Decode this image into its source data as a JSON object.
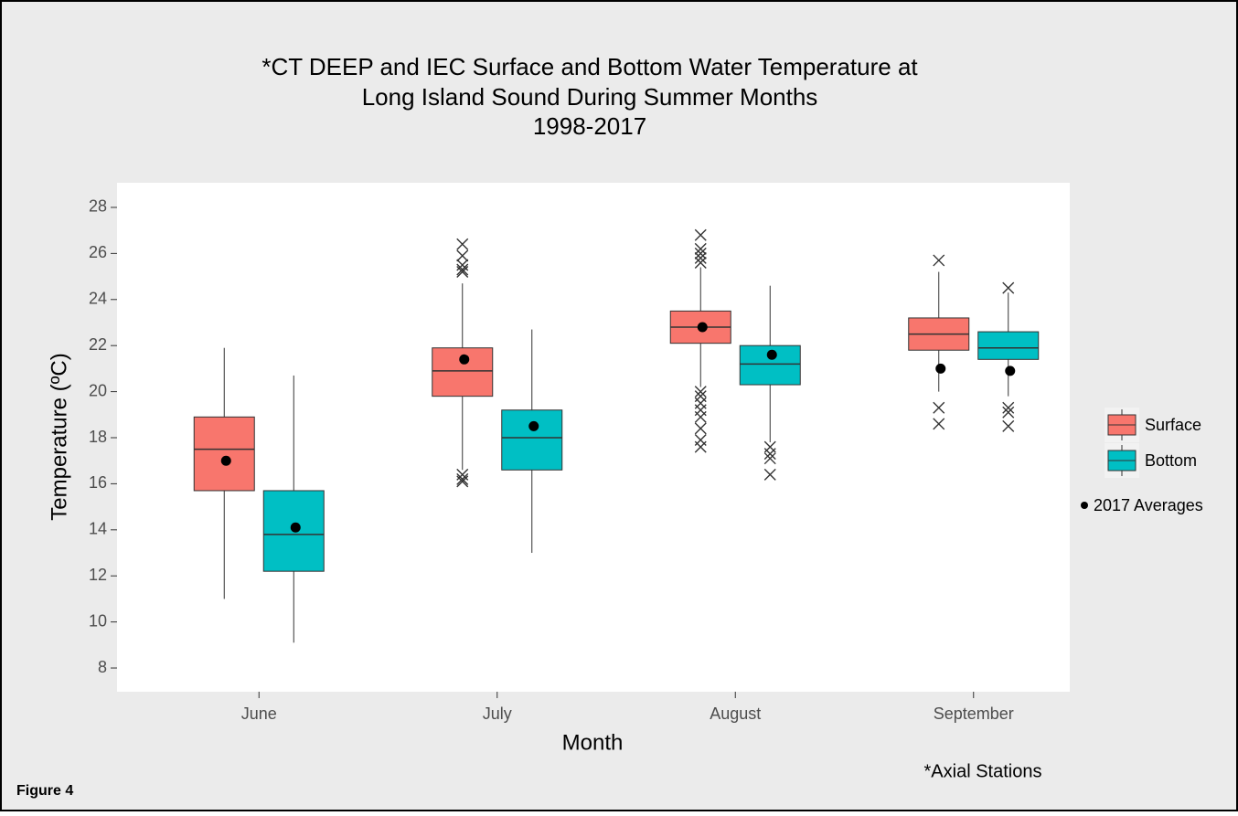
{
  "chart_data": {
    "type": "box",
    "title": [
      "*CT DEEP and IEC Surface and Bottom Water Temperature at",
      "Long Island Sound During Summer Months",
      "1998-2017"
    ],
    "x_label": "Month",
    "y_label": "Temperature (ºC)",
    "categories": [
      "June",
      "July",
      "August",
      "September"
    ],
    "ylim": [
      6.97,
      29.07
    ],
    "yticks": [
      8,
      10,
      12,
      14,
      16,
      18,
      20,
      22,
      24,
      26,
      28
    ],
    "grid": false,
    "legend_position": "right",
    "averages_label": "2017 Averages",
    "series": [
      {
        "name": "Surface",
        "color": "#f8766d",
        "min": [
          11.0,
          16.6,
          20.2,
          20.0
        ],
        "q1": [
          15.7,
          19.8,
          22.1,
          21.8
        ],
        "median": [
          17.5,
          20.9,
          22.8,
          22.5
        ],
        "q3": [
          18.9,
          21.9,
          23.5,
          23.2
        ],
        "max": [
          21.9,
          24.7,
          25.4,
          25.2
        ],
        "outliers": [
          [],
          [
            16.1,
            16.2,
            16.4,
            25.2,
            25.3,
            25.5,
            25.9,
            26.4
          ],
          [
            17.6,
            17.9,
            18.4,
            18.9,
            19.2,
            19.5,
            19.8,
            20.0,
            25.6,
            25.8,
            26.0,
            26.2,
            26.8
          ],
          [
            18.6,
            19.3,
            25.7
          ]
        ],
        "averages": [
          17.0,
          21.4,
          22.8,
          21.0
        ]
      },
      {
        "name": "Bottom",
        "color": "#00bfc4",
        "min": [
          9.1,
          13.0,
          17.8,
          19.8
        ],
        "q1": [
          12.2,
          16.6,
          20.3,
          21.4
        ],
        "median": [
          13.8,
          18.0,
          21.2,
          21.9
        ],
        "q3": [
          15.7,
          19.2,
          22.0,
          22.6
        ],
        "max": [
          20.7,
          22.7,
          24.6,
          24.3
        ],
        "outliers": [
          [],
          [],
          [
            16.4,
            17.1,
            17.3,
            17.6
          ],
          [
            18.5,
            19.1,
            19.3,
            24.5
          ]
        ],
        "averages": [
          14.1,
          18.5,
          21.6,
          20.9
        ]
      }
    ],
    "note": "*Axial Stations",
    "figure_label": "Figure 4"
  }
}
